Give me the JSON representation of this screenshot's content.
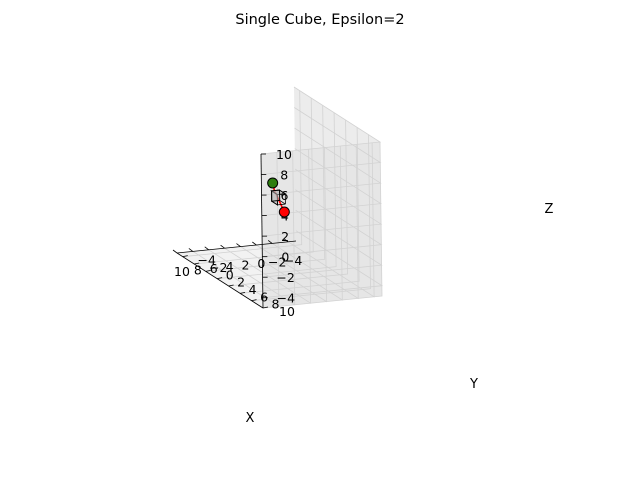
{
  "chart_data": {
    "type": "line3d",
    "title": "Single Cube, Epsilon=2",
    "xlabel": "X",
    "ylabel": "Y",
    "zlabel": "Z",
    "xlim": [
      -5,
      10
    ],
    "ylim": [
      -5,
      10
    ],
    "zlim": [
      -5,
      10
    ],
    "xticks": [
      "−4",
      "−2",
      "0",
      "2",
      "4",
      "6",
      "8",
      "10"
    ],
    "yticks": [
      "−4",
      "−2",
      "0",
      "2",
      "4",
      "6",
      "8",
      "10"
    ],
    "zticks": [
      "−4",
      "−2",
      "0",
      "2",
      "4",
      "6",
      "8",
      "10"
    ],
    "grid": true,
    "path": {
      "color": "#ff0000",
      "points": [
        [
          0,
          0,
          0
        ],
        [
          4.3,
          4.3,
          4.0
        ],
        [
          5.0,
          5.0,
          5.0
        ]
      ]
    },
    "start_point": {
      "x": 0,
      "y": 0,
      "z": 0,
      "color": "#ff0000"
    },
    "end_point": {
      "x": 5,
      "y": 5,
      "z": 5,
      "color": "#2e7d0f"
    },
    "cube": {
      "center": [
        2.5,
        2.5,
        2.5
      ],
      "size": 1,
      "face_color": "#bdbdbd",
      "edge_color": "#000000"
    }
  }
}
